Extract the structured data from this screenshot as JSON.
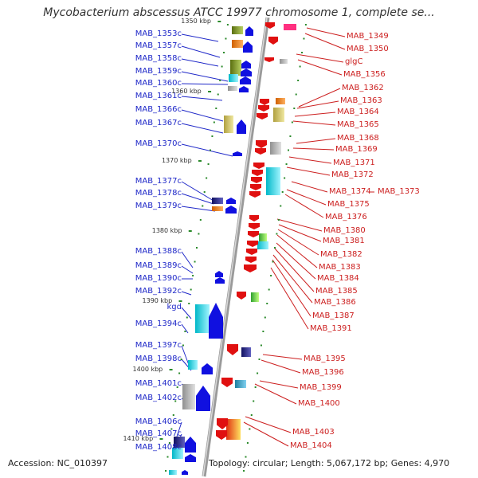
{
  "title": "Mycobacterium abscessus ATCC 19977 chromosome 1, complete se...",
  "accession": "Accession: NC_010397",
  "topology": "Topology: circular; Length: 5,067,172 bp; Genes: 4,970",
  "left_genes": [
    "MAB_1353c",
    "MAB_1357c",
    "MAB_1358c",
    "MAB_1359c",
    "MAB_1360c",
    "MAB_1361c",
    "MAB_1366c",
    "MAB_1367c",
    "MAB_1370c",
    "MAB_1377c",
    "MAB_1378c",
    "MAB_1379c",
    "MAB_1388c",
    "MAB_1389c",
    "MAB_1390c",
    "MAB_1392c",
    "kgd",
    "MAB_1394c",
    "MAB_1397c",
    "MAB_1398c",
    "MAB_1401c",
    "MAB_1402c",
    "MAB_1406c",
    "MAB_1407c",
    "MAB_1408c"
  ],
  "right_genes": [
    "MAB_1349",
    "MAB_1350",
    "glgC",
    "MAB_1356",
    "MAB_1362",
    "MAB_1363",
    "MAB_1364",
    "MAB_1365",
    "MAB_1368",
    "MAB_1369",
    "MAB_1371",
    "MAB_1372",
    "MAB_1374",
    "MAB_1373",
    "MAB_1375",
    "MAB_1376",
    "MAB_1380",
    "MAB_1381",
    "MAB_1382",
    "MAB_1383",
    "MAB_1384",
    "MAB_1385",
    "MAB_1386",
    "MAB_1387",
    "MAB_1391",
    "MAB_1395",
    "MAB_1396",
    "MAB_1399",
    "MAB_1400",
    "MAB_1403",
    "MAB_1404"
  ],
  "kbp_labels": [
    "1350 kbp",
    "1360 kbp",
    "1370 kbp",
    "1380 kbp",
    "1390 kbp",
    "1400 kbp",
    "1410 kbp"
  ],
  "colors": {
    "forward": "#e01010",
    "reverse": "#1010e0",
    "left_label": "#1f28c8",
    "right_label": "#cc1f1f",
    "axis": "#9a9a9a",
    "tick": "#2a8a2a"
  }
}
